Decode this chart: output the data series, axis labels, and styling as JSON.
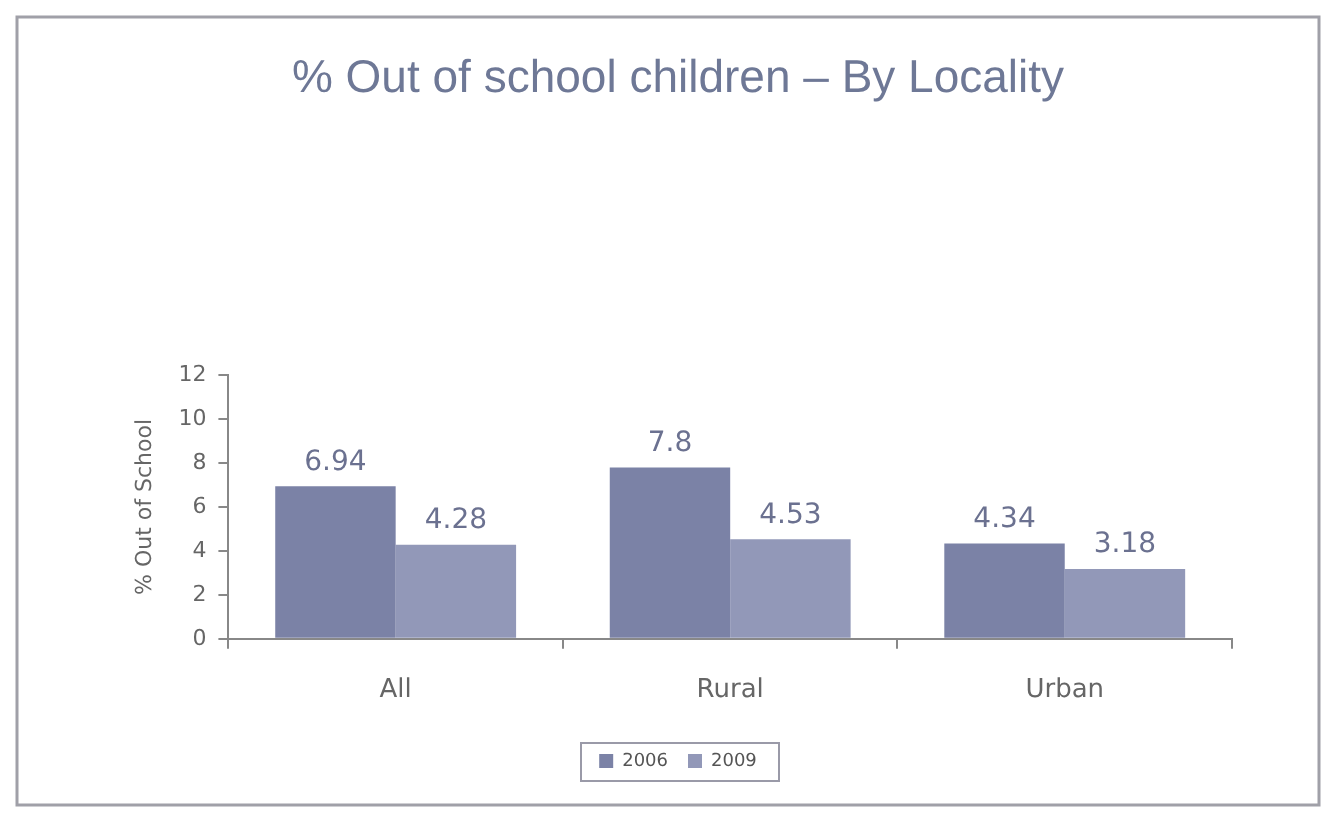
{
  "chart_data": {
    "type": "bar",
    "title": "% Out of school children – By Locality",
    "ylabel": "% Out of School",
    "categories": [
      "All",
      "Rural",
      "Urban"
    ],
    "series": [
      {
        "name": "2006",
        "color": "#7b82a6",
        "values": [
          6.94,
          7.8,
          4.34
        ]
      },
      {
        "name": "2009",
        "color": "#9298b8",
        "values": [
          4.28,
          4.53,
          3.18
        ]
      }
    ],
    "ylim": [
      0,
      12
    ],
    "yticks": [
      0,
      2,
      4,
      6,
      8,
      10,
      12
    ],
    "data_labels": true,
    "legend": "bottom"
  }
}
